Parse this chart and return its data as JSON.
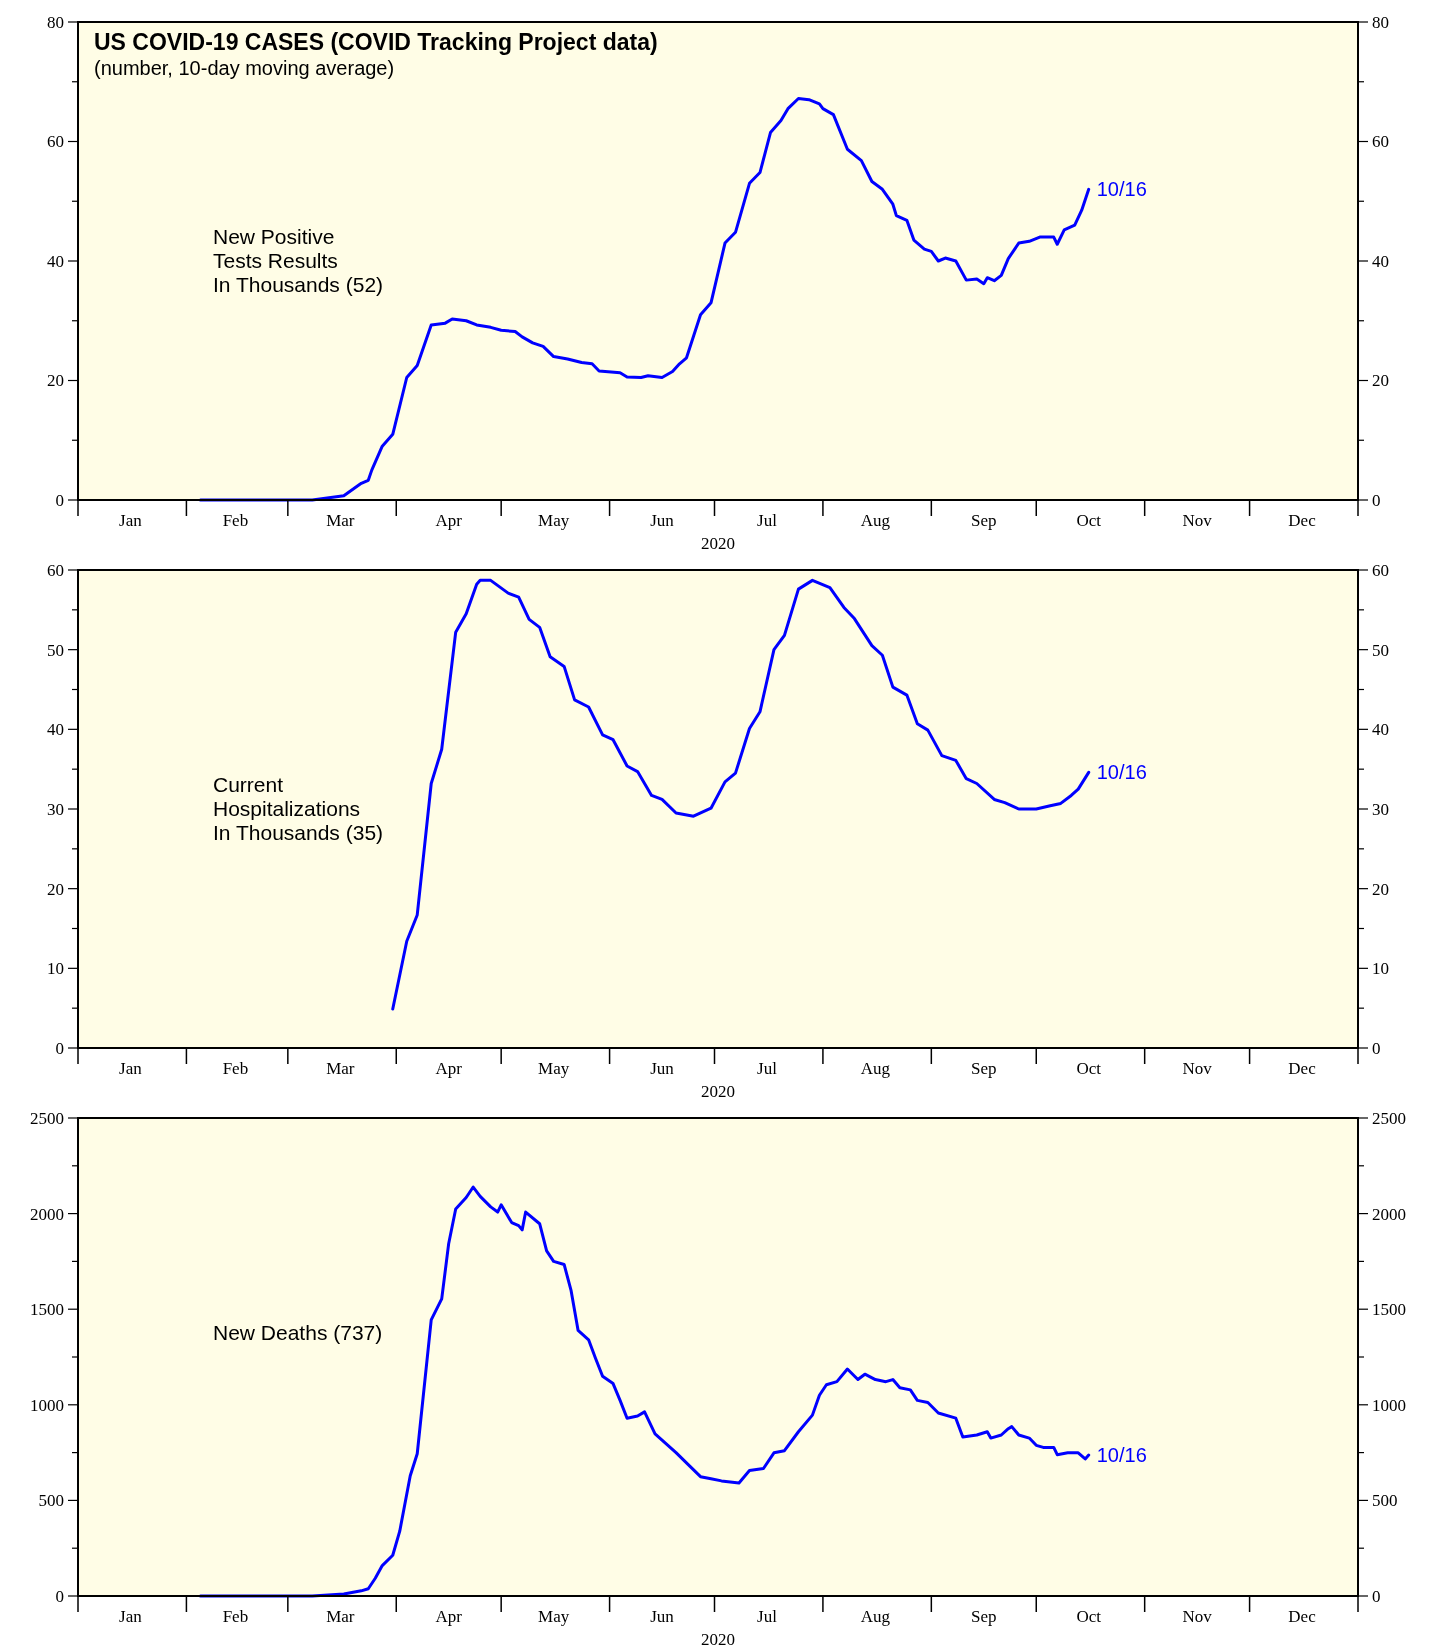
{
  "chart_data": [
    {
      "type": "line",
      "title": "US COVID-19 CASES (COVID Tracking Project data)",
      "subtitle": "(number, 10-day moving average)",
      "xlabel": "2020",
      "x": [
        "2020-02-05",
        "2020-03-08",
        "2020-03-17",
        "2020-03-22",
        "2020-03-24",
        "2020-03-25",
        "2020-03-28",
        "2020-03-31",
        "2020-04-04",
        "2020-04-07",
        "2020-04-11",
        "2020-04-15",
        "2020-04-17",
        "2020-04-21",
        "2020-04-24",
        "2020-04-28",
        "2020-05-01",
        "2020-05-05",
        "2020-05-07",
        "2020-05-10",
        "2020-05-13",
        "2020-05-16",
        "2020-05-20",
        "2020-05-24",
        "2020-05-27",
        "2020-05-29",
        "2020-06-04",
        "2020-06-06",
        "2020-06-10",
        "2020-06-12",
        "2020-06-16",
        "2020-06-19",
        "2020-06-21",
        "2020-06-23",
        "2020-06-27",
        "2020-06-30",
        "2020-07-04",
        "2020-07-07",
        "2020-07-11",
        "2020-07-14",
        "2020-07-17",
        "2020-07-20",
        "2020-07-22",
        "2020-07-25",
        "2020-07-28",
        "2020-07-31",
        "2020-08-01",
        "2020-08-04",
        "2020-08-08",
        "2020-08-12",
        "2020-08-15",
        "2020-08-18",
        "2020-08-21",
        "2020-08-22",
        "2020-08-25",
        "2020-08-27",
        "2020-08-30",
        "2020-09-01",
        "2020-09-03",
        "2020-09-05",
        "2020-09-08",
        "2020-09-11",
        "2020-09-14",
        "2020-09-16",
        "2020-09-17",
        "2020-09-19",
        "2020-09-21",
        "2020-09-23",
        "2020-09-26",
        "2020-09-29",
        "2020-10-02",
        "2020-10-06",
        "2020-10-07",
        "2020-10-09",
        "2020-10-12",
        "2020-10-14",
        "2020-10-16"
      ],
      "series": [
        {
          "color": "#0000ff",
          "values": [
            0,
            0,
            0.7,
            2.8,
            3.3,
            5,
            9,
            11,
            20.5,
            22.5,
            29.3,
            29.6,
            30.3,
            30,
            29.3,
            28.9,
            28.4,
            28.2,
            27.3,
            26.3,
            25.7,
            24,
            23.6,
            23,
            22.8,
            21.6,
            21.3,
            20.6,
            20.5,
            20.8,
            20.5,
            21.5,
            22.8,
            23.8,
            31,
            33,
            43,
            44.8,
            53,
            54.8,
            61.5,
            63.5,
            65.5,
            67.2,
            67,
            66.3,
            65.5,
            64.5,
            58.7,
            56.8,
            53.3,
            52,
            49.5,
            47.6,
            46.8,
            43.5,
            42,
            41.6,
            40,
            40.5,
            40,
            36.8,
            37,
            36.2,
            37.2,
            36.7,
            37.6,
            40.4,
            43,
            43.3,
            44,
            44,
            42.8,
            45.2,
            46,
            48.5,
            52
          ]
        }
      ],
      "xlim": [
        "2020-01-01",
        "2021-01-01"
      ],
      "xticks": [
        {
          "value": "2020-01-01",
          "label": null
        },
        {
          "value": "2020-01-16",
          "label": "Jan"
        },
        {
          "value": "2020-02-01",
          "label": null
        },
        {
          "value": "2020-02-15",
          "label": "Feb"
        },
        {
          "value": "2020-03-01",
          "label": null
        },
        {
          "value": "2020-03-16",
          "label": "Mar"
        },
        {
          "value": "2020-04-01",
          "label": null
        },
        {
          "value": "2020-04-16",
          "label": "Apr"
        },
        {
          "value": "2020-05-01",
          "label": null
        },
        {
          "value": "2020-05-16",
          "label": "May"
        },
        {
          "value": "2020-06-01",
          "label": null
        },
        {
          "value": "2020-06-16",
          "label": "Jun"
        },
        {
          "value": "2020-07-01",
          "label": null
        },
        {
          "value": "2020-07-16",
          "label": "Jul"
        },
        {
          "value": "2020-08-01",
          "label": null
        },
        {
          "value": "2020-08-16",
          "label": "Aug"
        },
        {
          "value": "2020-09-01",
          "label": null
        },
        {
          "value": "2020-09-16",
          "label": "Sep"
        },
        {
          "value": "2020-10-01",
          "label": null
        },
        {
          "value": "2020-10-16",
          "label": "Oct"
        },
        {
          "value": "2020-11-01",
          "label": null
        },
        {
          "value": "2020-11-16",
          "label": "Nov"
        },
        {
          "value": "2020-12-01",
          "label": null
        },
        {
          "value": "2020-12-16",
          "label": "Dec"
        },
        {
          "value": "2021-01-01",
          "label": null
        }
      ],
      "ylim": [
        0,
        80
      ],
      "yticks": [
        0,
        {
          "value": 10,
          "label": null
        },
        20,
        {
          "value": 30,
          "label": null
        },
        40,
        {
          "value": 50,
          "label": null
        },
        60,
        {
          "value": 70,
          "label": null
        },
        80
      ],
      "y2lim": [
        0,
        80
      ],
      "y2ticks": [
        0,
        {
          "value": 10,
          "label": null
        },
        20,
        {
          "value": 30,
          "label": null
        },
        40,
        {
          "value": 50,
          "label": null
        },
        60,
        {
          "value": 70,
          "label": null
        },
        80
      ],
      "annotations": [
        "New Positive\nTests Results\nIn Thousands (52)",
        {
          "text": "10/16",
          "x": "2020-10-16",
          "y": 52
        }
      ]
    },
    {
      "type": "line",
      "xlabel": "2020",
      "x": [
        "2020-03-31",
        "2020-04-04",
        "2020-04-07",
        "2020-04-11",
        "2020-04-14",
        "2020-04-18",
        "2020-04-21",
        "2020-04-24",
        "2020-04-25",
        "2020-04-28",
        "2020-05-03",
        "2020-05-06",
        "2020-05-09",
        "2020-05-12",
        "2020-05-15",
        "2020-05-19",
        "2020-05-22",
        "2020-05-26",
        "2020-05-30",
        "2020-06-02",
        "2020-06-06",
        "2020-06-09",
        "2020-06-13",
        "2020-06-16",
        "2020-06-20",
        "2020-06-25",
        "2020-06-30",
        "2020-07-04",
        "2020-07-07",
        "2020-07-11",
        "2020-07-14",
        "2020-07-18",
        "2020-07-21",
        "2020-07-25",
        "2020-07-29",
        "2020-08-03",
        "2020-08-07",
        "2020-08-10",
        "2020-08-15",
        "2020-08-18",
        "2020-08-21",
        "2020-08-25",
        "2020-08-28",
        "2020-08-31",
        "2020-09-04",
        "2020-09-08",
        "2020-09-11",
        "2020-09-14",
        "2020-09-19",
        "2020-09-22",
        "2020-09-26",
        "2020-10-01",
        "2020-10-05",
        "2020-10-08",
        "2020-10-11",
        "2020-10-13",
        "2020-10-16"
      ],
      "series": [
        {
          "color": "#0000ff",
          "values": [
            4.9,
            13.4,
            16.7,
            33.2,
            37.5,
            52.2,
            54.5,
            58.2,
            58.7,
            58.7,
            57.1,
            56.6,
            53.8,
            52.8,
            49.1,
            47.9,
            43.7,
            42.8,
            39.3,
            38.7,
            35.4,
            34.7,
            31.7,
            31.2,
            29.5,
            29.1,
            30.1,
            33.4,
            34.5,
            40.1,
            42.2,
            50,
            51.8,
            57.6,
            58.7,
            57.8,
            55.3,
            53.9,
            50.5,
            49.3,
            45.3,
            44.3,
            40.7,
            39.9,
            36.7,
            36.1,
            33.8,
            33.2,
            31.2,
            30.8,
            30,
            30,
            30.4,
            30.7,
            31.7,
            32.5,
            34.6
          ]
        }
      ],
      "xlim": [
        "2020-01-01",
        "2021-01-01"
      ],
      "xticks": [
        {
          "value": "2020-01-01",
          "label": null
        },
        {
          "value": "2020-01-16",
          "label": "Jan"
        },
        {
          "value": "2020-02-01",
          "label": null
        },
        {
          "value": "2020-02-15",
          "label": "Feb"
        },
        {
          "value": "2020-03-01",
          "label": null
        },
        {
          "value": "2020-03-16",
          "label": "Mar"
        },
        {
          "value": "2020-04-01",
          "label": null
        },
        {
          "value": "2020-04-16",
          "label": "Apr"
        },
        {
          "value": "2020-05-01",
          "label": null
        },
        {
          "value": "2020-05-16",
          "label": "May"
        },
        {
          "value": "2020-06-01",
          "label": null
        },
        {
          "value": "2020-06-16",
          "label": "Jun"
        },
        {
          "value": "2020-07-01",
          "label": null
        },
        {
          "value": "2020-07-16",
          "label": "Jul"
        },
        {
          "value": "2020-08-01",
          "label": null
        },
        {
          "value": "2020-08-16",
          "label": "Aug"
        },
        {
          "value": "2020-09-01",
          "label": null
        },
        {
          "value": "2020-09-16",
          "label": "Sep"
        },
        {
          "value": "2020-10-01",
          "label": null
        },
        {
          "value": "2020-10-16",
          "label": "Oct"
        },
        {
          "value": "2020-11-01",
          "label": null
        },
        {
          "value": "2020-11-16",
          "label": "Nov"
        },
        {
          "value": "2020-12-01",
          "label": null
        },
        {
          "value": "2020-12-16",
          "label": "Dec"
        },
        {
          "value": "2021-01-01",
          "label": null
        }
      ],
      "ylim": [
        0,
        60
      ],
      "yticks": [
        0,
        {
          "value": 5,
          "label": null
        },
        10,
        {
          "value": 15,
          "label": null
        },
        20,
        {
          "value": 25,
          "label": null
        },
        30,
        {
          "value": 35,
          "label": null
        },
        40,
        {
          "value": 45,
          "label": null
        },
        50,
        {
          "value": 55,
          "label": null
        },
        60
      ],
      "y2lim": [
        0,
        60
      ],
      "y2ticks": [
        0,
        {
          "value": 5,
          "label": null
        },
        10,
        {
          "value": 15,
          "label": null
        },
        20,
        {
          "value": 25,
          "label": null
        },
        30,
        {
          "value": 35,
          "label": null
        },
        40,
        {
          "value": 45,
          "label": null
        },
        50,
        {
          "value": 55,
          "label": null
        },
        60
      ],
      "annotations": [
        "Current\nHospitalizations\nIn Thousands (35)",
        {
          "text": "10/16",
          "x": "2020-10-16",
          "y": 34.6
        }
      ]
    },
    {
      "type": "line",
      "xlabel": "2020",
      "x": [
        "2020-02-05",
        "2020-03-08",
        "2020-03-17",
        "2020-03-22",
        "2020-03-24",
        "2020-03-26",
        "2020-03-28",
        "2020-03-31",
        "2020-04-02",
        "2020-04-05",
        "2020-04-07",
        "2020-04-11",
        "2020-04-14",
        "2020-04-16",
        "2020-04-18",
        "2020-04-21",
        "2020-04-23",
        "2020-04-25",
        "2020-04-28",
        "2020-04-30",
        "2020-05-01",
        "2020-05-04",
        "2020-05-06",
        "2020-05-07",
        "2020-05-08",
        "2020-05-12",
        "2020-05-14",
        "2020-05-16",
        "2020-05-19",
        "2020-05-21",
        "2020-05-23",
        "2020-05-26",
        "2020-05-28",
        "2020-05-30",
        "2020-06-02",
        "2020-06-04",
        "2020-06-06",
        "2020-06-09",
        "2020-06-11",
        "2020-06-14",
        "2020-06-16",
        "2020-06-20",
        "2020-06-24",
        "2020-06-27",
        "2020-06-30",
        "2020-07-03",
        "2020-07-08",
        "2020-07-11",
        "2020-07-15",
        "2020-07-18",
        "2020-07-21",
        "2020-07-25",
        "2020-07-29",
        "2020-07-31",
        "2020-08-02",
        "2020-08-05",
        "2020-08-08",
        "2020-08-11",
        "2020-08-13",
        "2020-08-16",
        "2020-08-19",
        "2020-08-21",
        "2020-08-23",
        "2020-08-26",
        "2020-08-28",
        "2020-08-31",
        "2020-09-03",
        "2020-09-08",
        "2020-09-10",
        "2020-09-14",
        "2020-09-17",
        "2020-09-18",
        "2020-09-21",
        "2020-09-23",
        "2020-09-24",
        "2020-09-26",
        "2020-09-29",
        "2020-10-01",
        "2020-10-03",
        "2020-10-06",
        "2020-10-07",
        "2020-10-10",
        "2020-10-13",
        "2020-10-15",
        "2020-10-16"
      ],
      "series": [
        {
          "color": "#0000ff",
          "values": [
            0,
            0,
            10,
            27,
            38,
            93,
            159,
            213,
            339,
            629,
            744,
            1444,
            1554,
            1844,
            2024,
            2084,
            2139,
            2090,
            2035,
            2008,
            2046,
            1953,
            1937,
            1915,
            2008,
            1947,
            1805,
            1750,
            1734,
            1597,
            1389,
            1340,
            1242,
            1149,
            1111,
            1023,
            930,
            941,
            963,
            848,
            815,
            750,
            678,
            624,
            613,
            602,
            591,
            656,
            667,
            749,
            760,
            859,
            946,
            1050,
            1105,
            1121,
            1187,
            1132,
            1160,
            1132,
            1121,
            1132,
            1089,
            1078,
            1023,
            1012,
            957,
            930,
            832,
            842,
            859,
            826,
            842,
            875,
            886,
            842,
            826,
            788,
            777,
            777,
            739,
            749,
            749,
            717,
            737
          ]
        }
      ],
      "xlim": [
        "2020-01-01",
        "2021-01-01"
      ],
      "xticks": [
        {
          "value": "2020-01-01",
          "label": null
        },
        {
          "value": "2020-01-16",
          "label": "Jan"
        },
        {
          "value": "2020-02-01",
          "label": null
        },
        {
          "value": "2020-02-15",
          "label": "Feb"
        },
        {
          "value": "2020-03-01",
          "label": null
        },
        {
          "value": "2020-03-16",
          "label": "Mar"
        },
        {
          "value": "2020-04-01",
          "label": null
        },
        {
          "value": "2020-04-16",
          "label": "Apr"
        },
        {
          "value": "2020-05-01",
          "label": null
        },
        {
          "value": "2020-05-16",
          "label": "May"
        },
        {
          "value": "2020-06-01",
          "label": null
        },
        {
          "value": "2020-06-16",
          "label": "Jun"
        },
        {
          "value": "2020-07-01",
          "label": null
        },
        {
          "value": "2020-07-16",
          "label": "Jul"
        },
        {
          "value": "2020-08-01",
          "label": null
        },
        {
          "value": "2020-08-16",
          "label": "Aug"
        },
        {
          "value": "2020-09-01",
          "label": null
        },
        {
          "value": "2020-09-16",
          "label": "Sep"
        },
        {
          "value": "2020-10-01",
          "label": null
        },
        {
          "value": "2020-10-16",
          "label": "Oct"
        },
        {
          "value": "2020-11-01",
          "label": null
        },
        {
          "value": "2020-11-16",
          "label": "Nov"
        },
        {
          "value": "2020-12-01",
          "label": null
        },
        {
          "value": "2020-12-16",
          "label": "Dec"
        },
        {
          "value": "2021-01-01",
          "label": null
        }
      ],
      "ylim": [
        0,
        2500
      ],
      "yticks": [
        0,
        {
          "value": 250,
          "label": null
        },
        500,
        {
          "value": 750,
          "label": null
        },
        1000,
        {
          "value": 1250,
          "label": null
        },
        1500,
        {
          "value": 1750,
          "label": null
        },
        2000,
        {
          "value": 2250,
          "label": null
        },
        2500
      ],
      "y2lim": [
        0,
        2500
      ],
      "y2ticks": [
        0,
        {
          "value": 250,
          "label": null
        },
        500,
        {
          "value": 750,
          "label": null
        },
        1000,
        {
          "value": 1250,
          "label": null
        },
        1500,
        {
          "value": 1750,
          "label": null
        },
        2000,
        {
          "value": 2250,
          "label": null
        },
        2500
      ],
      "annotations": [
        "New Deaths (737)",
        {
          "text": "10/16",
          "x": "2020-10-16",
          "y": 737
        }
      ]
    }
  ]
}
